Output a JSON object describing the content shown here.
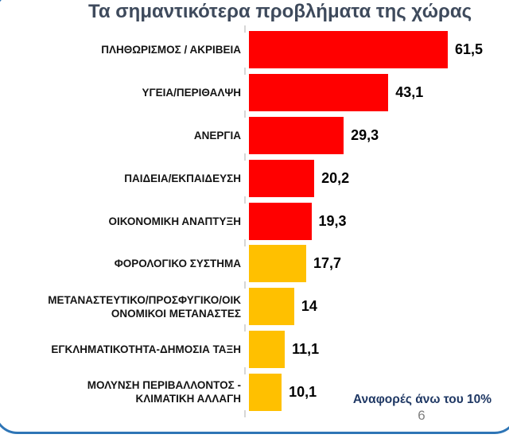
{
  "slide": {
    "title": "Τα σημαντικότερα προβλήματα της χώρας",
    "annotation": "Αναφορές άνω του 10%",
    "page_number": "6"
  },
  "chart_data": {
    "type": "bar",
    "orientation": "horizontal",
    "title": "Τα σημαντικότερα προβλήματα της χώρας",
    "categories": [
      "ΠΛΗΘΩΡΙΣΜΟΣ / ΑΚΡΙΒΕΙΑ",
      "ΥΓΕΙΑ/ΠΕΡΙΘΑΛΨΗ",
      "ΑΝΕΡΓΙΑ",
      "ΠΑΙΔΕΙΑ/ΕΚΠΑΙΔΕΥΣΗ",
      "ΟΙΚΟΝΟΜΙΚΗ ΑΝΑΠΤΥΞΗ",
      "ΦΟΡΟΛΟΓΙΚΟ ΣΥΣΤΗΜΑ",
      "ΜΕΤΑΝΑΣΤΕΥΤΙΚΟ/ΠΡΟΣΦΥΓΙΚΟ/ΟΙΚΟΝΟΜΙΚΟΙ ΜΕΤΑΝΑΣΤΕΣ",
      "ΕΓΚΛΗΜΑΤΙΚΟΤΗΤΑ-ΔΗΜΟΣΙΑ ΤΑΞΗ",
      "ΜΟΛΥΝΣΗ ΠΕΡΙΒΑΛΛΟΝΤΟΣ - ΚΛΙΜΑΤΙΚΗ ΑΛΛΑΓΗ"
    ],
    "display_labels": [
      "ΠΛΗΘΩΡΙΣΜΟΣ / ΑΚΡΙΒΕΙΑ",
      "ΥΓΕΙΑ/ΠΕΡΙΘΑΛΨΗ",
      "ΑΝΕΡΓΙΑ",
      "ΠΑΙΔΕΙΑ/ΕΚΠΑΙΔΕΥΣΗ",
      "ΟΙΚΟΝΟΜΙΚΗ ΑΝΑΠΤΥΞΗ",
      "ΦΟΡΟΛΟΓΙΚΟ ΣΥΣΤΗΜΑ",
      "ΜΕΤΑΝΑΣΤΕΥΤΙΚΟ/ΠΡΟΣΦΥΓΙΚΟ/ΟΙΚ\nΟΝΟΜΙΚΟΙ ΜΕΤΑΝΑΣΤΕΣ",
      "ΕΓΚΛΗΜΑΤΙΚΟΤΗΤΑ-ΔΗΜΟΣΙΑ ΤΑΞΗ",
      "ΜΟΛΥΝΣΗ ΠΕΡΙΒΑΛΛΟΝΤΟΣ -\nΚΛΙΜΑΤΙΚΗ ΑΛΛΑΓΗ"
    ],
    "values": [
      61.5,
      43.1,
      29.3,
      20.2,
      19.3,
      17.7,
      14,
      11.1,
      10.1
    ],
    "value_labels": [
      "61,5",
      "43,1",
      "29,3",
      "20,2",
      "19,3",
      "17,7",
      "14",
      "11,1",
      "10,1"
    ],
    "bar_colors": [
      "#FF0000",
      "#FF0000",
      "#FF0000",
      "#FF0000",
      "#FF0000",
      "#FFC000",
      "#FFC000",
      "#FFC000",
      "#FFC000"
    ],
    "xlim": [
      0,
      65
    ],
    "grid": false,
    "legend": false,
    "note": "Αναφορές άνω του 10%"
  },
  "colors": {
    "bar_red": "#FF0000",
    "bar_orange": "#FFC000",
    "title_text": "#3E4A5C",
    "annotation_text": "#1F3864",
    "border_blue": "#2E75B6",
    "page_number_gray": "#808080",
    "tick_gray": "#D6D6D6"
  }
}
